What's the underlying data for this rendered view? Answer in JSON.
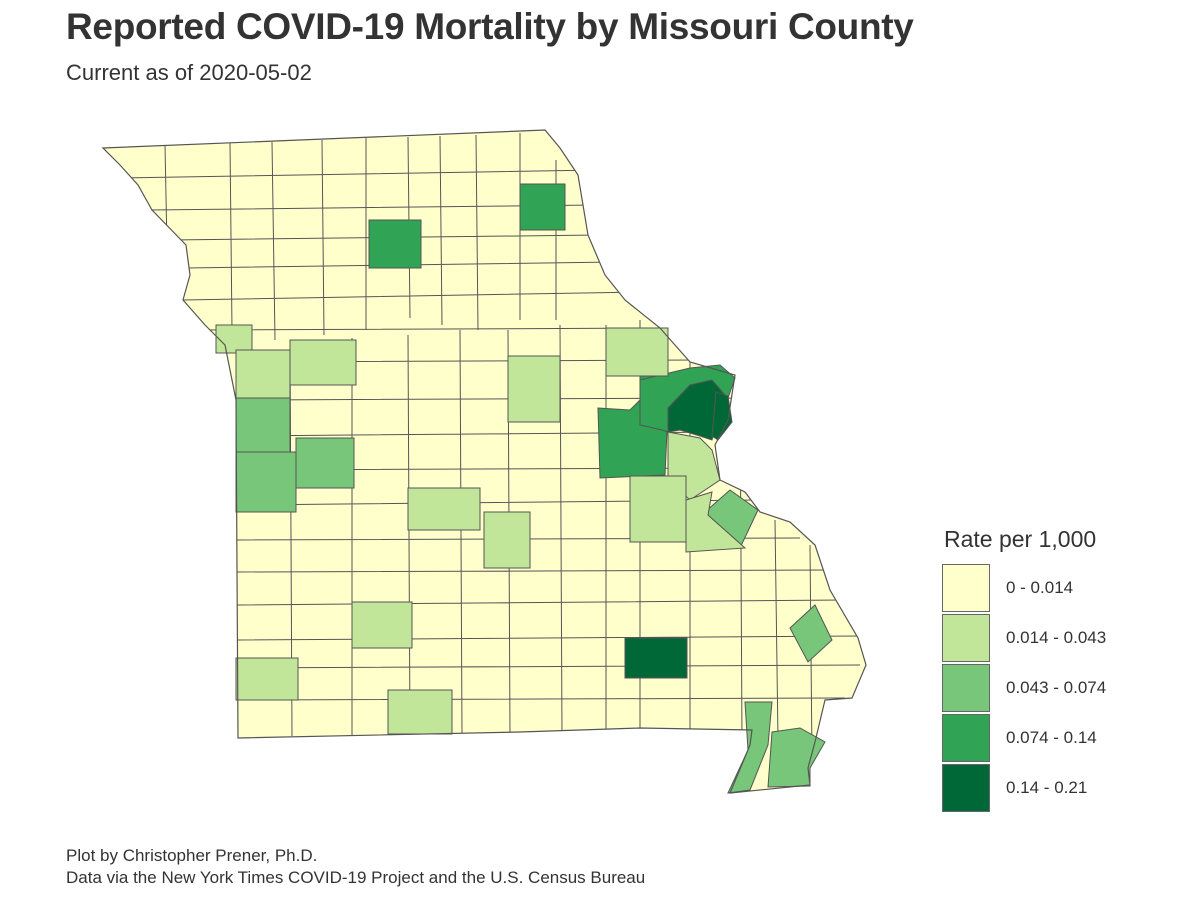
{
  "header": {
    "title": "Reported COVID-19 Mortality by Missouri County",
    "subtitle": "Current as of 2020-05-02"
  },
  "legend": {
    "title": "Rate per 1,000",
    "items": [
      {
        "label": "0 - 0.014",
        "color": "#ffffcc"
      },
      {
        "label": "0.014 - 0.043",
        "color": "#c2e699"
      },
      {
        "label": "0.043 - 0.074",
        "color": "#78c679"
      },
      {
        "label": "0.074 - 0.14",
        "color": "#31a354"
      },
      {
        "label": "0.14 - 0.21",
        "color": "#006837"
      }
    ]
  },
  "map": {
    "region": "Missouri",
    "border_color": "#555555"
  },
  "caption": {
    "line1": "Plot by Christopher Prener, Ph.D.",
    "line2": "Data via the New York Times COVID-19 Project and the U.S. Census Bureau"
  }
}
